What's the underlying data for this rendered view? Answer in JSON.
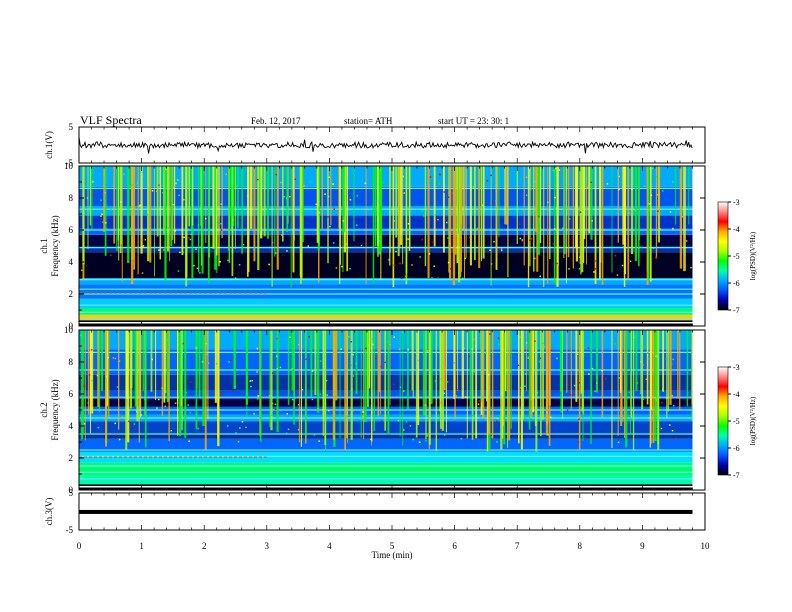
{
  "header": {
    "title": "VLF  Spectra",
    "date": "Feb. 12, 2017",
    "station": "station= ATH",
    "start": "start  UT  =    23: 30: 1"
  },
  "chart_data": {
    "type": "heatmap",
    "x": {
      "label": "Time  (min)",
      "range": [
        0,
        10
      ],
      "ticks": [
        "0",
        "1",
        "2",
        "3",
        "4",
        "5",
        "6",
        "7",
        "8",
        "9",
        "10"
      ]
    },
    "panels": [
      {
        "id": "ch1-wave",
        "ylabel": "ch.1(V)",
        "ylim": [
          -5,
          5
        ],
        "ticks": [
          "5",
          "-5"
        ],
        "kind": "waveform"
      },
      {
        "id": "ch1-spec",
        "ylabel_line1": "ch.1",
        "ylabel_line2": "Frequency  (kHz)",
        "ylim": [
          0,
          10
        ],
        "ticks": [
          "0",
          "2",
          "4",
          "6",
          "8",
          "10"
        ],
        "kind": "spectrogram"
      },
      {
        "id": "ch2-spec",
        "ylabel_line1": "ch.2",
        "ylabel_line2": "Frequency  (kHz)",
        "ylim": [
          0,
          10
        ],
        "ticks": [
          "0",
          "2",
          "4",
          "6",
          "8",
          "10"
        ],
        "kind": "spectrogram"
      },
      {
        "id": "ch3-wave",
        "ylabel": "ch.3(V)",
        "ylim": [
          -5,
          5
        ],
        "ticks": [
          "5",
          "-5"
        ],
        "kind": "waveform"
      }
    ],
    "colorbar": {
      "label": "log(PSD)(V²/Hz)",
      "range": [
        -7,
        -3
      ],
      "ticks": [
        "-3",
        "-4",
        "-5",
        "-6",
        "-7"
      ],
      "colors": [
        "#000000",
        "#0000aa",
        "#0055ff",
        "#00aaff",
        "#00ffaa",
        "#00ff00",
        "#aaff00",
        "#ffff00",
        "#ffaa00",
        "#ff0000",
        "#ff8888",
        "#ffffff"
      ]
    },
    "data_end_min": 9.8,
    "dashed_band_end_min": 3.0
  }
}
